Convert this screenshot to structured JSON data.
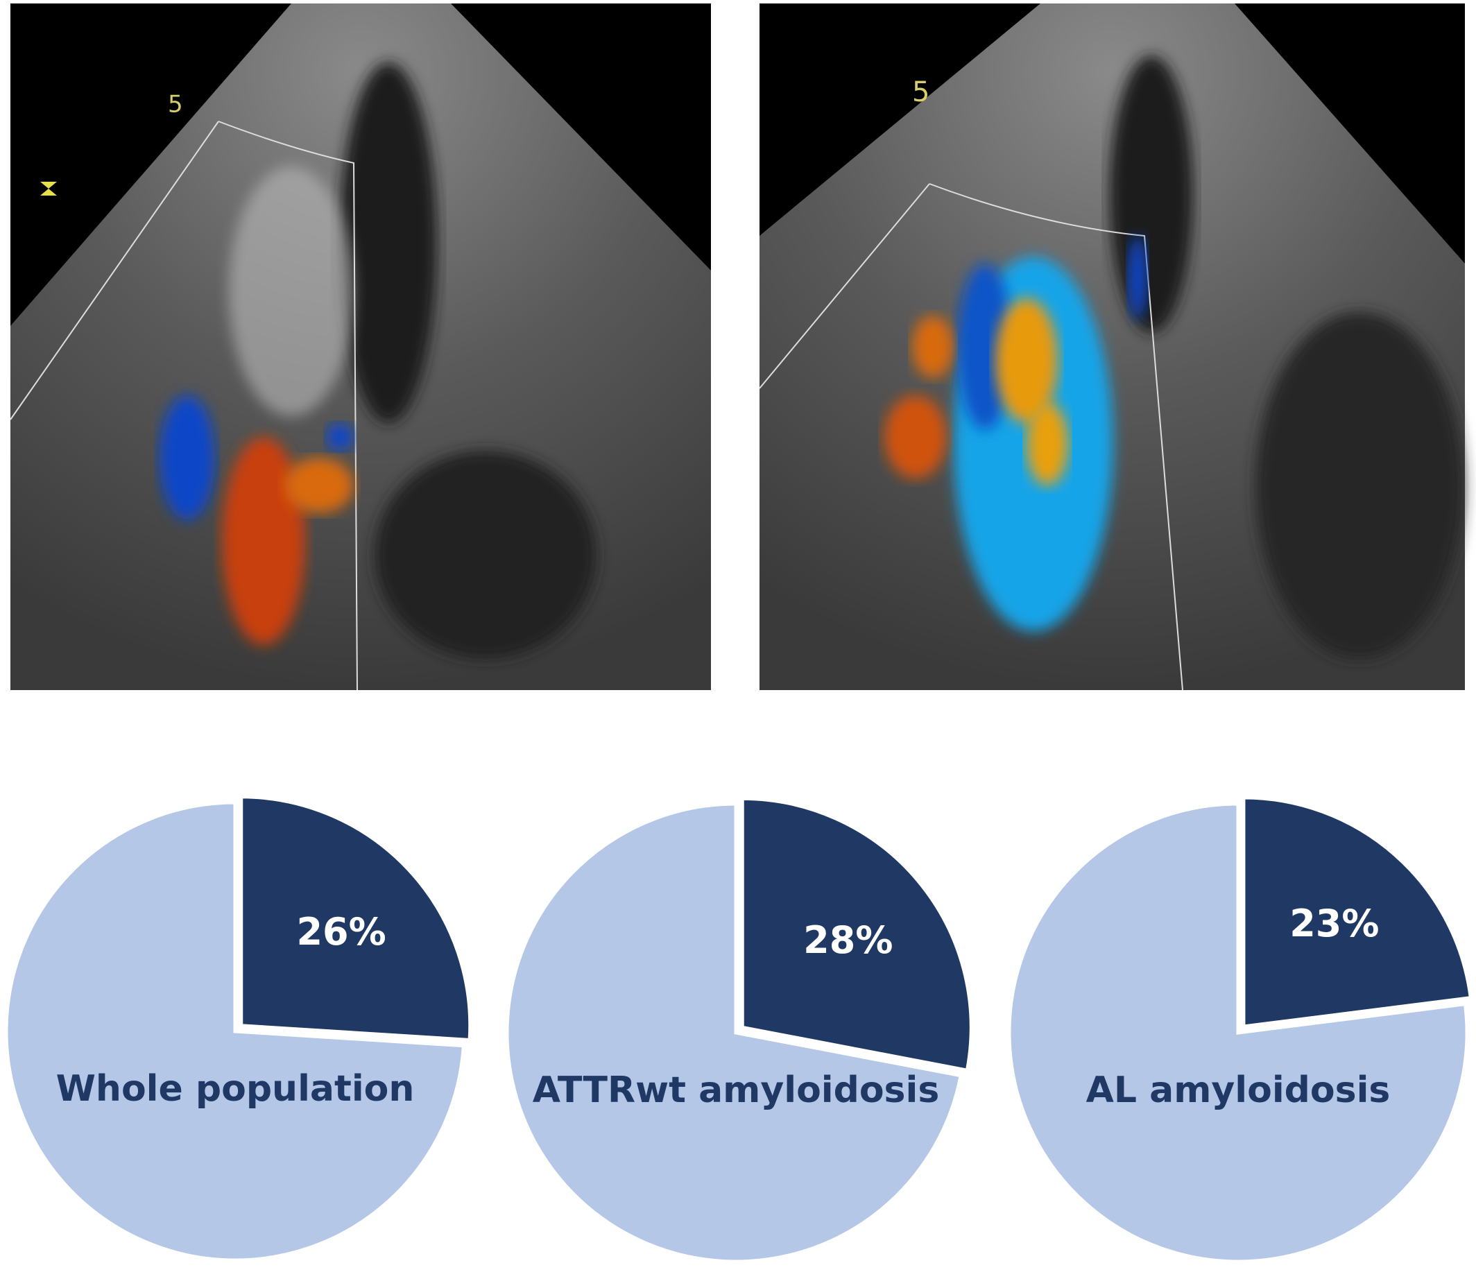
{
  "images": [
    {
      "depth_mark": "5"
    },
    {
      "depth_mark": "5"
    }
  ],
  "chart_data": [
    {
      "type": "pie",
      "title": "Whole population",
      "values": [
        26,
        74
      ],
      "value_labels": [
        "26%",
        null
      ],
      "colors": [
        "#1f3864",
        "#b4c7e7"
      ]
    },
    {
      "type": "pie",
      "title": "ATTRwt amyloidosis",
      "values": [
        28,
        72
      ],
      "value_labels": [
        "28%",
        null
      ],
      "colors": [
        "#1f3864",
        "#b4c7e7"
      ]
    },
    {
      "type": "pie",
      "title": "AL amyloidosis",
      "values": [
        23,
        77
      ],
      "value_labels": [
        "23%",
        null
      ],
      "colors": [
        "#1f3864",
        "#b4c7e7"
      ]
    }
  ]
}
